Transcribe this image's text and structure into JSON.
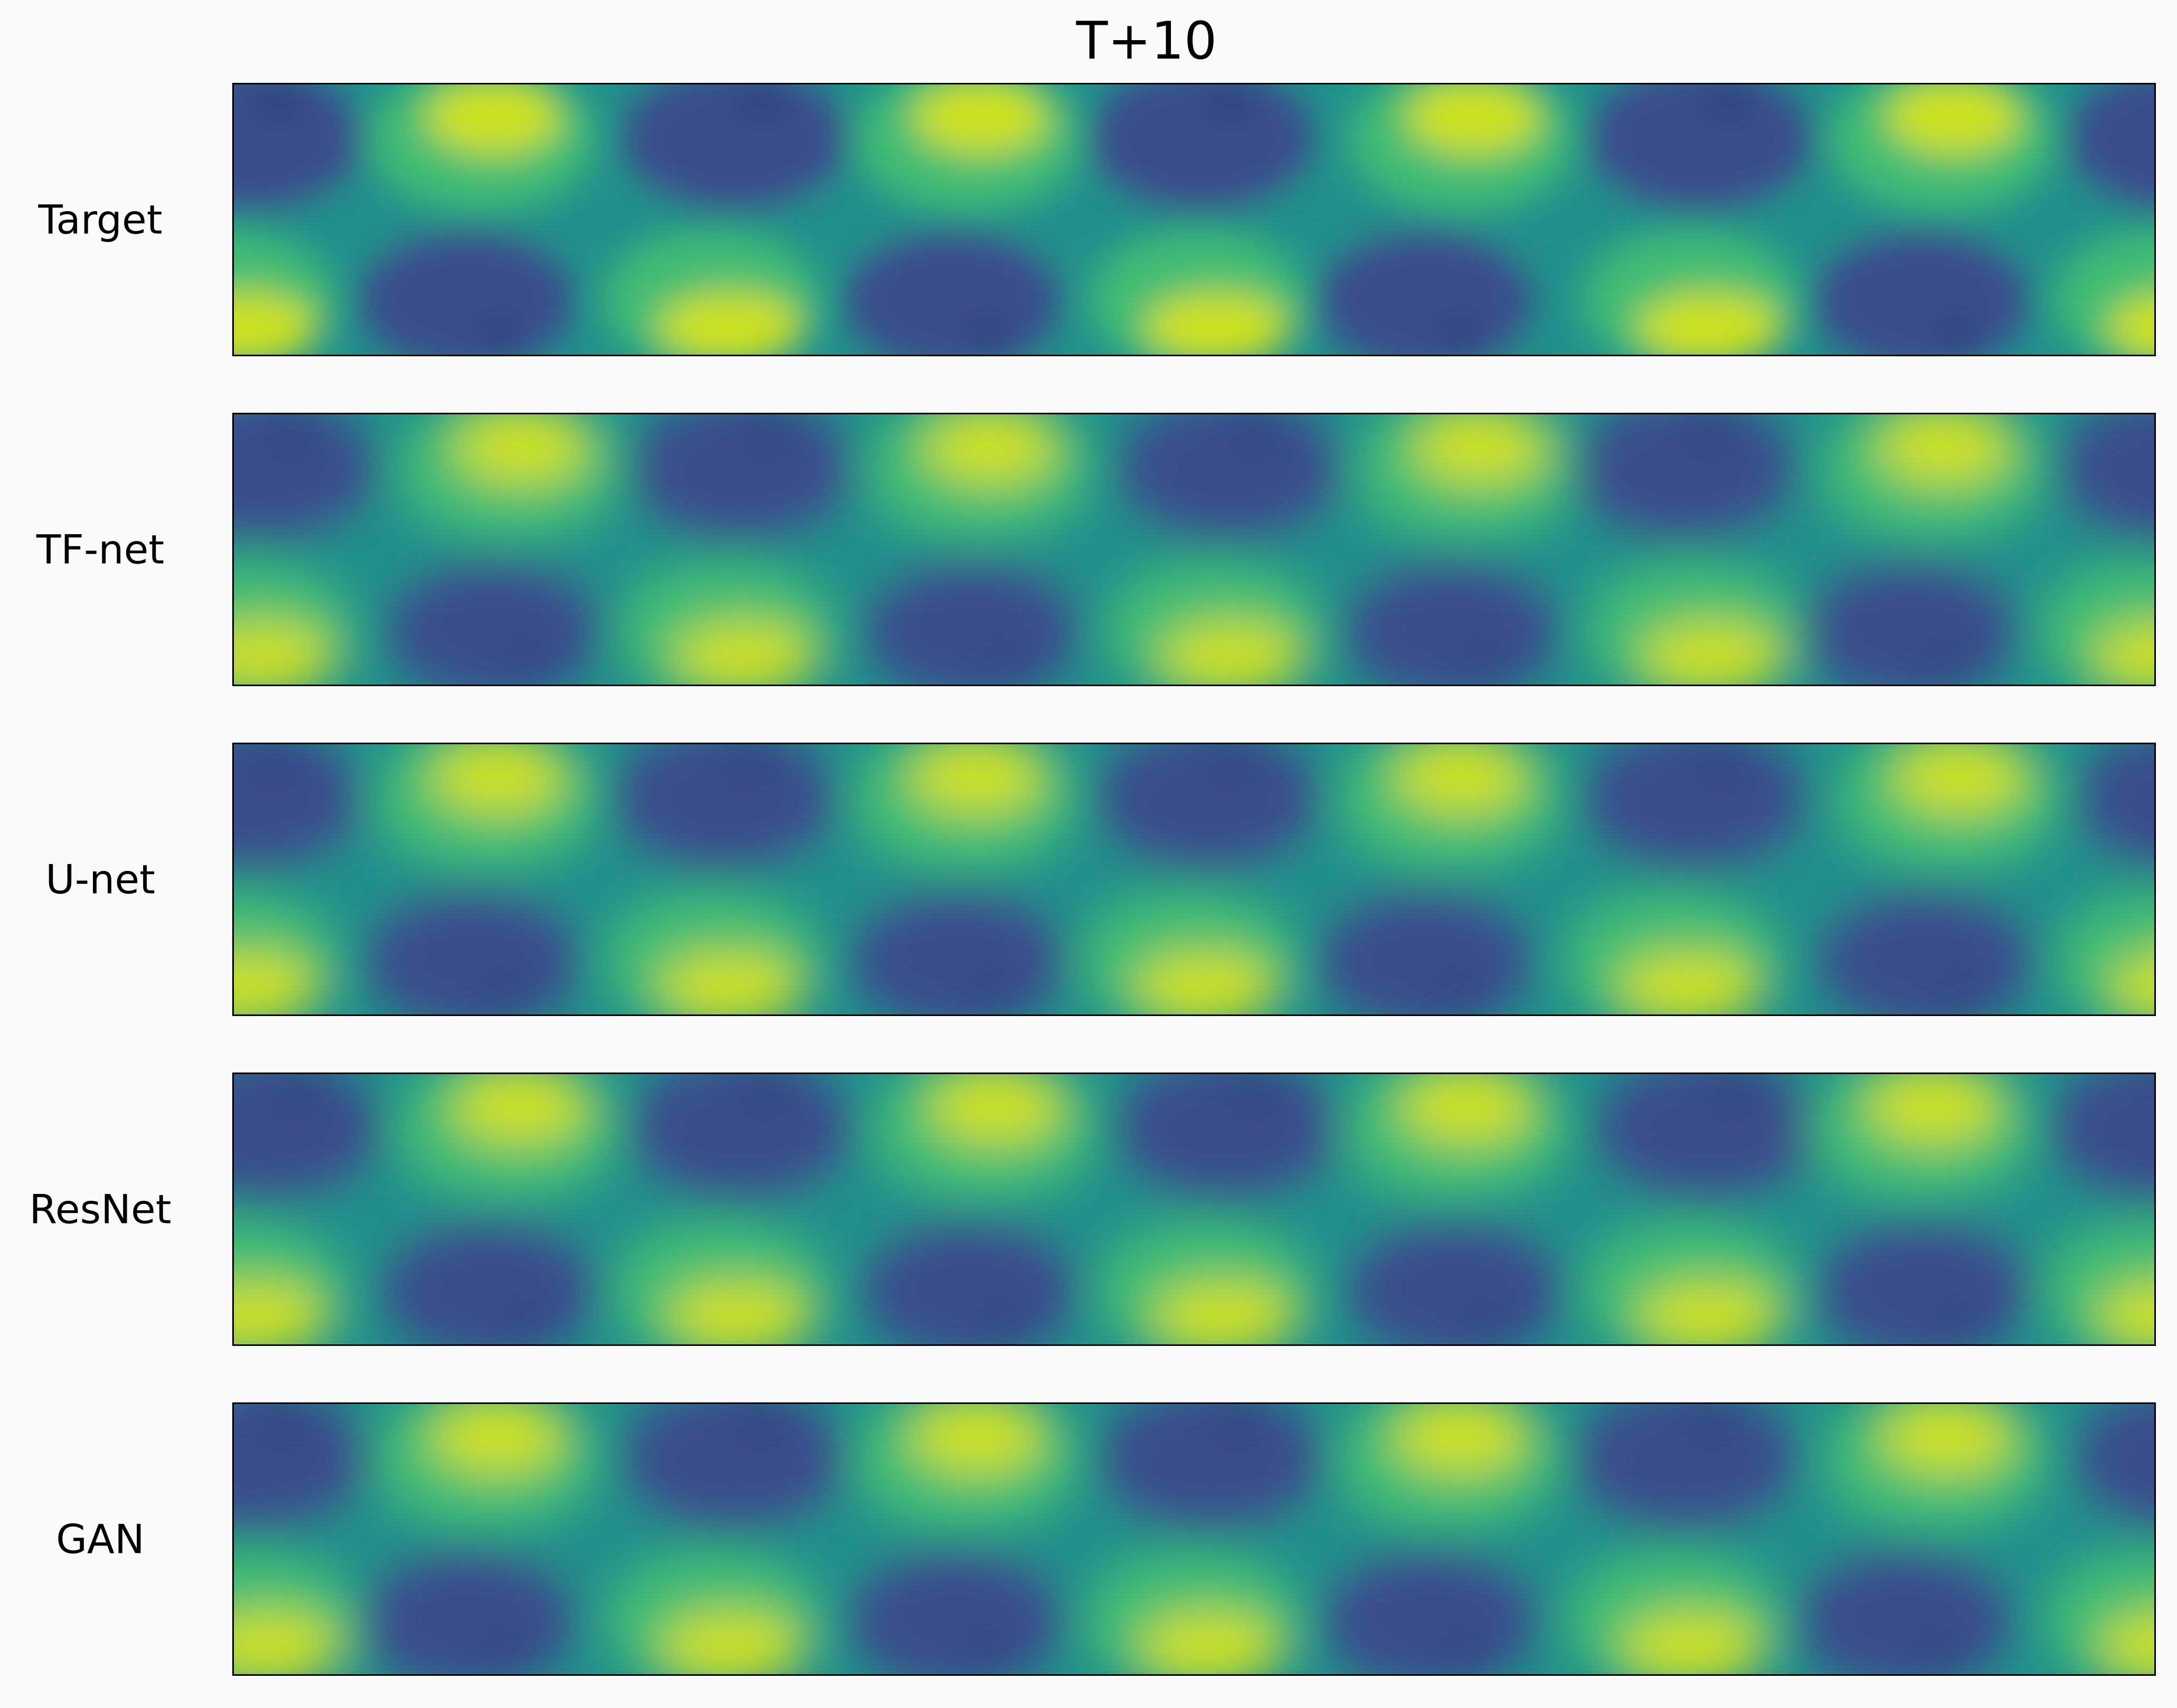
{
  "title": "T+10",
  "colors": {
    "background": "#fafafa",
    "low": "#3b4d8c",
    "low_dark": "#282a6e",
    "mid": "#21918c",
    "mid_light": "#3fbc73",
    "high": "#cde11d",
    "frame": "#000000"
  },
  "chart_data": {
    "type": "heatmap",
    "title": "T+10",
    "colormap": "viridis",
    "grid": false,
    "axes": "hidden",
    "rows": [
      {
        "label": "Target",
        "cells_top": [
          "low",
          "high",
          "low",
          "high",
          "low",
          "high",
          "low",
          "high",
          "low"
        ],
        "cells_bottom": [
          "high",
          "low",
          "high",
          "low",
          "high",
          "low",
          "high",
          "low",
          "high"
        ]
      },
      {
        "label": "TF-net",
        "cells_top": [
          "low",
          "high",
          "low",
          "high",
          "low",
          "high",
          "low",
          "high",
          "low"
        ],
        "cells_bottom": [
          "high",
          "low",
          "high",
          "low",
          "high",
          "low",
          "high",
          "low",
          "high"
        ]
      },
      {
        "label": "U-net",
        "cells_top": [
          "low",
          "high",
          "low",
          "high",
          "low",
          "high",
          "low",
          "high",
          "low"
        ],
        "cells_bottom": [
          "high",
          "low",
          "high",
          "low",
          "high",
          "low",
          "high",
          "low",
          "high"
        ]
      },
      {
        "label": "ResNet",
        "cells_top": [
          "low",
          "high",
          "low",
          "high",
          "low",
          "high",
          "low",
          "high",
          "low"
        ],
        "cells_bottom": [
          "high",
          "low",
          "high",
          "low",
          "high",
          "low",
          "high",
          "low",
          "high"
        ]
      },
      {
        "label": "GAN",
        "cells_top": [
          "low",
          "high",
          "low",
          "high",
          "low",
          "high",
          "low",
          "high",
          "low"
        ],
        "cells_bottom": [
          "high",
          "low",
          "high",
          "low",
          "high",
          "low",
          "high",
          "low",
          "high"
        ]
      }
    ]
  }
}
